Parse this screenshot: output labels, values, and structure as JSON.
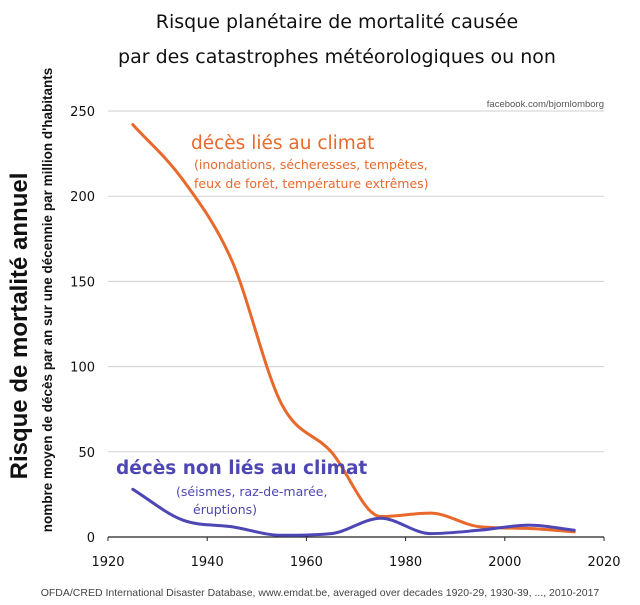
{
  "chart_data": {
    "type": "line",
    "title": [
      "Risque planétaire de mortalité causée",
      "par des catastrophes météorologiques ou non"
    ],
    "ylabel": "Risque de mortalité annuel",
    "ylabel_sub": "nombre moyen de décès par an sur une décennie par million d'habitants",
    "xlabel": "",
    "xlim": [
      1920,
      2020
    ],
    "ylim": [
      0,
      250
    ],
    "x_ticks": [
      1920,
      1940,
      1960,
      1980,
      2000,
      2020
    ],
    "y_ticks": [
      0,
      50,
      100,
      150,
      200,
      250
    ],
    "grid": "horizontal",
    "credit": "facebook.com/bjornlomborg",
    "source": "OFDA/CRED International Disaster Database, www.emdat.be, averaged over decades 1920-29, 1930-39, ..., 2010-2017",
    "series": [
      {
        "name": "décès liés au climat",
        "color": "#e8692c",
        "x": [
          1925,
          1935,
          1945,
          1955,
          1965,
          1975,
          1985,
          1995,
          2005,
          2014
        ],
        "values": [
          242,
          210,
          162,
          78,
          50,
          12,
          14,
          6,
          5,
          3
        ]
      },
      {
        "name": "décès non liés au climat",
        "color": "#4d46b4",
        "x": [
          1925,
          1935,
          1945,
          1955,
          1965,
          1975,
          1985,
          1995,
          2005,
          2014
        ],
        "values": [
          28,
          10,
          6,
          1,
          2,
          11,
          2,
          4,
          7,
          4
        ]
      }
    ],
    "annotations": {
      "climate_title": "décès liés au climat",
      "climate_sub_1": "(inondations, sécheresses, tempêtes,",
      "climate_sub_2": "feux de forêt, température extrêmes)",
      "nonclimate_title": "décès non liés au climat",
      "nonclimate_sub_1": "(séismes, raz-de-marée,",
      "nonclimate_sub_2": "éruptions)"
    }
  }
}
